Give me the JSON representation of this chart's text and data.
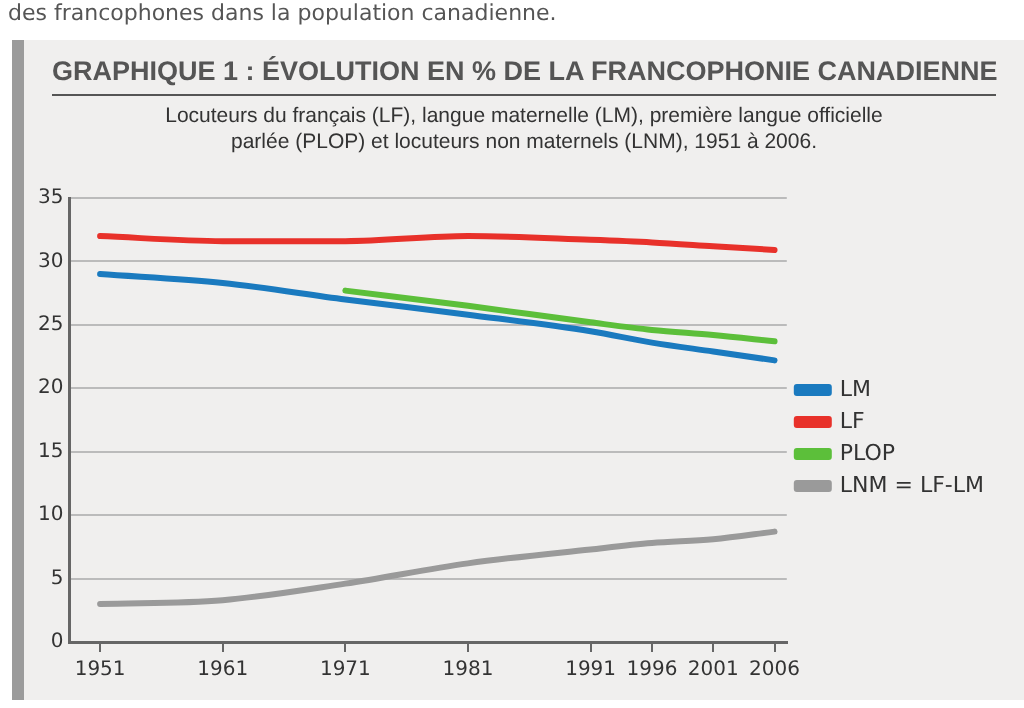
{
  "chart_data": {
    "type": "line",
    "title": "GRAPHIQUE 1 : ÉVOLUTION EN % DE LA FRANCOPHONIE CANADIENNE",
    "subtitle": "Locuteurs du français (LF), langue maternelle (LM), première langue officielle parlée (PLOP) et locuteurs non maternels (LNM), 1951 à 2006.",
    "annotations": [
      "des francophones dans la population canadienne."
    ],
    "x": [
      1951,
      1961,
      1971,
      1981,
      1991,
      1996,
      2001,
      2006
    ],
    "series": [
      {
        "name": "LM",
        "color": "#1a7abf",
        "values": [
          29.0,
          28.3,
          27.0,
          25.8,
          24.5,
          23.6,
          22.9,
          22.2
        ]
      },
      {
        "name": "LF",
        "color": "#e8312a",
        "values": [
          32.0,
          31.6,
          31.6,
          32.0,
          31.7,
          31.5,
          31.2,
          30.9
        ]
      },
      {
        "name": "PLOP",
        "color": "#5cbf3a",
        "values": [
          null,
          null,
          27.7,
          26.5,
          25.2,
          24.6,
          24.2,
          23.7
        ]
      },
      {
        "name": "LNM = LF-LM",
        "color": "#9a9a9a",
        "values": [
          3.0,
          3.3,
          4.6,
          6.2,
          7.3,
          7.8,
          8.1,
          8.7
        ]
      }
    ],
    "xlim": [
      1948.5,
      2007
    ],
    "xticks": [
      1951,
      1961,
      1971,
      1981,
      1991,
      1996,
      2001,
      2006
    ],
    "ylim": [
      0,
      35
    ],
    "yticks": [
      0,
      5,
      10,
      15,
      20,
      25,
      30,
      35
    ],
    "grid": "y",
    "legend": "right",
    "marker": "none",
    "line_style": "solid"
  }
}
